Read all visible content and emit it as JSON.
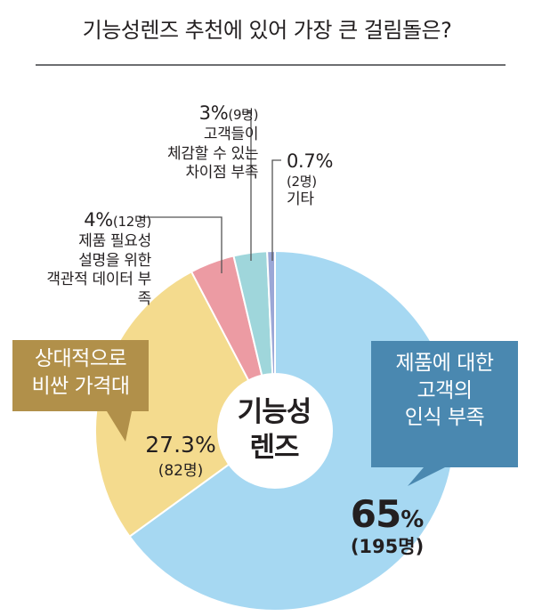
{
  "title": "기능성렌즈 추천에 있어 가장 큰 걸림돌은?",
  "center_label": [
    "기능성",
    "렌즈"
  ],
  "chart_data": {
    "type": "pie",
    "title": "기능성렌즈 추천에 있어 가장 큰 걸림돌은?",
    "center_label": "기능성 렌즈",
    "unit": "%",
    "slices": [
      {
        "label": "제품에 대한 고객의 인식 부족",
        "value": 65,
        "count": "195명",
        "color": "#a6d8f2"
      },
      {
        "label": "상대적으로 비싼 가격대",
        "value": 27.3,
        "count": "82명",
        "color": "#f4db8e"
      },
      {
        "label": "제품 필요성 설명을 위한 객관적 데이터 부족",
        "value": 4,
        "count": "12명",
        "color": "#ec9ba3"
      },
      {
        "label": "고객들이 체감할 수 있는 차이점 부족",
        "value": 3,
        "count": "9명",
        "color": "#9fd6db"
      },
      {
        "label": "기타",
        "value": 0.7,
        "count": "2명",
        "color": "#9ba7d6"
      }
    ]
  },
  "labels": {
    "s65": {
      "value": "65",
      "unit": "%",
      "count": "(195명)",
      "callout": [
        "제품에 대한",
        "고객의",
        "인식 부족"
      ],
      "callout_color": "#4a88b0"
    },
    "s27": {
      "value": "27.3%",
      "count": "(82명)",
      "callout": [
        "상대적으로",
        "비싼 가격대"
      ],
      "callout_color": "#b1904a"
    },
    "s4": {
      "value": "4%",
      "count": "(12명)",
      "lines": [
        "제품 필요성",
        "설명을 위한",
        "객관적 데이터 부족"
      ]
    },
    "s3": {
      "value": "3%",
      "count": "(9명)",
      "lines": [
        "고객들이",
        "체감할 수 있는",
        "차이점 부족"
      ]
    },
    "s07": {
      "value": "0.7%",
      "count": "(2명)",
      "lines": [
        "기타"
      ]
    }
  }
}
